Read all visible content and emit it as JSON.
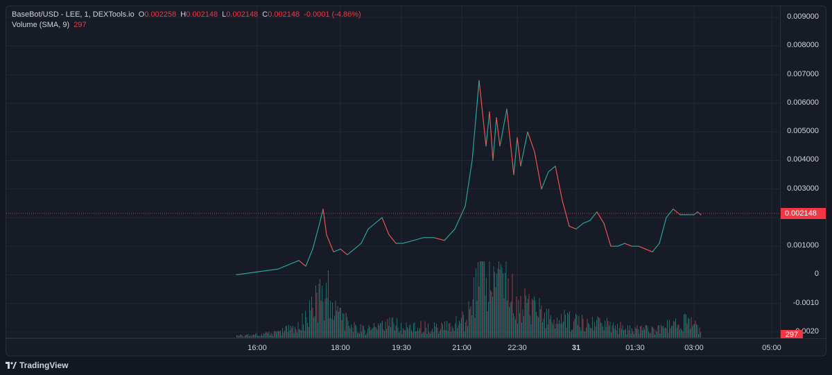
{
  "legend": {
    "symbol": "BaseBot/USD - LEE, 1, DEXTools.io",
    "open_label": "O",
    "open_value": "0.002258",
    "high_label": "H",
    "high_value": "0.002148",
    "low_label": "L",
    "low_value": "0.002148",
    "close_label": "C",
    "close_value": "0.002148",
    "change": "-0.0001 (-4.86%)",
    "volume_label": "Volume (SMA, 9)",
    "volume_value": "297"
  },
  "price_scale": {
    "ticks": [
      "0.009000",
      "0.008000",
      "0.007000",
      "0.006000",
      "0.005000",
      "0.004000",
      "0.003000",
      "0.002000",
      "0.001000",
      "0",
      "-0.0010",
      "-0.0020"
    ],
    "last_price_tag": "0.002148",
    "volume_tag": "297"
  },
  "time_axis": {
    "ticks": [
      "16:00",
      "18:00",
      "19:30",
      "21:00",
      "22:30",
      "31",
      "01:30",
      "03:00",
      "05:00"
    ]
  },
  "brand": {
    "name": "TradingView"
  },
  "colors": {
    "background": "#171b26",
    "grid": "#232733",
    "up": "#26a69a",
    "down": "#ef5350",
    "last_price": "#f23645",
    "text": "#d1d4dc"
  },
  "chart_data": {
    "type": "line",
    "title": "BaseBot/USD - LEE, 1, DEXTools.io",
    "xlabel": "",
    "ylabel": "",
    "x_ticks": [
      "16:00",
      "18:00",
      "19:30",
      "21:00",
      "22:30",
      "31",
      "01:30",
      "03:00",
      "05:00"
    ],
    "ylim": [
      -0.0021,
      0.0092
    ],
    "last_price": 0.002148,
    "series": [
      {
        "name": "BaseBot/USD",
        "x": [
          "15:30",
          "16:00",
          "16:30",
          "17:00",
          "17:10",
          "17:20",
          "17:30",
          "17:35",
          "17:40",
          "17:45",
          "17:50",
          "18:00",
          "18:10",
          "18:20",
          "18:30",
          "18:40",
          "19:00",
          "19:10",
          "19:20",
          "19:30",
          "19:45",
          "20:00",
          "20:15",
          "20:30",
          "20:45",
          "21:00",
          "21:10",
          "21:20",
          "21:30",
          "21:35",
          "21:40",
          "21:45",
          "21:50",
          "22:00",
          "22:10",
          "22:15",
          "22:20",
          "22:30",
          "22:40",
          "22:50",
          "23:00",
          "23:10",
          "23:20",
          "23:30",
          "23:40",
          "23:50",
          "00:00",
          "00:10",
          "00:20",
          "00:30",
          "00:40",
          "00:50",
          "01:00",
          "01:10",
          "01:20",
          "01:30",
          "01:40",
          "01:50",
          "02:00",
          "02:10",
          "02:20",
          "02:30",
          "02:35",
          "02:40"
        ],
        "values": [
          0.0,
          0.0001,
          0.0002,
          0.0005,
          0.0003,
          0.0009,
          0.0018,
          0.0023,
          0.0014,
          0.0011,
          0.0008,
          0.0009,
          0.0007,
          0.0009,
          0.0011,
          0.0016,
          0.002,
          0.0014,
          0.0011,
          0.0011,
          0.0012,
          0.0013,
          0.0013,
          0.0012,
          0.0016,
          0.0024,
          0.004,
          0.0068,
          0.0045,
          0.0057,
          0.004,
          0.0055,
          0.0045,
          0.0058,
          0.0035,
          0.0048,
          0.0038,
          0.005,
          0.0043,
          0.003,
          0.0036,
          0.0038,
          0.0026,
          0.0017,
          0.0016,
          0.0018,
          0.0019,
          0.0022,
          0.0018,
          0.001,
          0.001,
          0.0011,
          0.001,
          0.001,
          0.0009,
          0.0008,
          0.0011,
          0.002,
          0.0023,
          0.0021,
          0.0021,
          0.0021,
          0.0022,
          0.0021
        ]
      },
      {
        "name": "Volume (SMA, 9)",
        "x": [
          "15:30",
          "16:00",
          "16:30",
          "17:00",
          "17:20",
          "17:40",
          "18:00",
          "18:20",
          "18:40",
          "19:00",
          "19:20",
          "19:40",
          "20:00",
          "20:20",
          "20:40",
          "21:00",
          "21:20",
          "21:40",
          "22:00",
          "22:20",
          "22:40",
          "23:00",
          "23:20",
          "23:40",
          "00:00",
          "00:20",
          "00:40",
          "01:00",
          "01:20",
          "01:40",
          "02:00",
          "02:20",
          "02:40"
        ],
        "values": [
          1,
          2,
          3,
          8,
          20,
          30,
          12,
          6,
          5,
          9,
          8,
          6,
          7,
          6,
          8,
          12,
          35,
          40,
          30,
          22,
          18,
          15,
          12,
          10,
          8,
          9,
          7,
          5,
          5,
          6,
          8,
          12,
          5
        ]
      }
    ]
  }
}
